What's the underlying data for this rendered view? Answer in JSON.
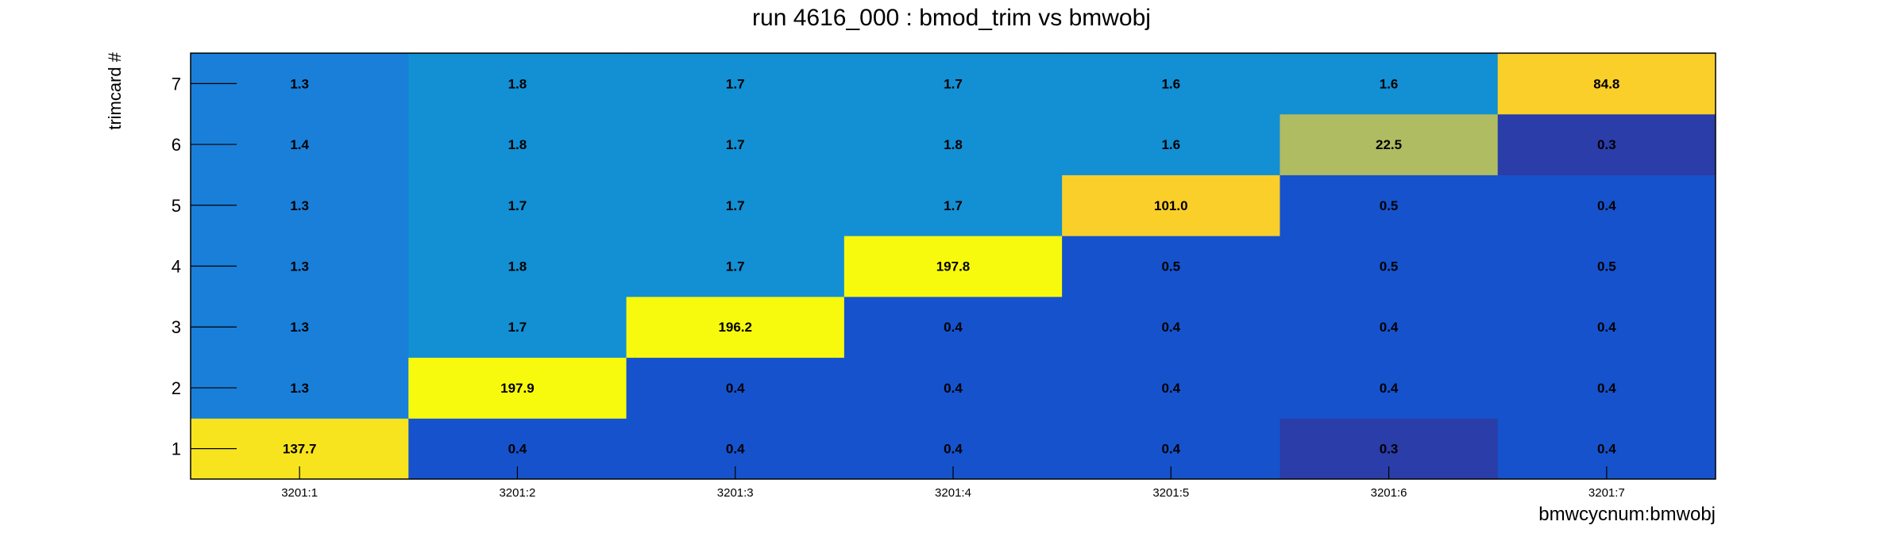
{
  "chart_data": {
    "type": "heatmap",
    "title": "run 4616_000 : bmod_trim vs bmwobj",
    "xlabel": "bmwcycnum:bmwobj",
    "ylabel": "trimcard #",
    "x_categories": [
      "3201:1",
      "3201:2",
      "3201:3",
      "3201:4",
      "3201:5",
      "3201:6",
      "3201:7"
    ],
    "y_categories": [
      "1",
      "2",
      "3",
      "4",
      "5",
      "6",
      "7"
    ],
    "values": [
      [
        137.7,
        0.4,
        0.4,
        0.4,
        0.4,
        0.3,
        0.4
      ],
      [
        1.3,
        197.9,
        0.4,
        0.4,
        0.4,
        0.4,
        0.4
      ],
      [
        1.3,
        1.7,
        196.2,
        0.4,
        0.4,
        0.4,
        0.4
      ],
      [
        1.3,
        1.8,
        1.7,
        197.8,
        0.5,
        0.5,
        0.5
      ],
      [
        1.3,
        1.7,
        1.7,
        1.7,
        101.0,
        0.5,
        0.4
      ],
      [
        1.4,
        1.8,
        1.7,
        1.8,
        1.6,
        22.5,
        0.3
      ],
      [
        1.3,
        1.8,
        1.7,
        1.7,
        1.6,
        1.6,
        84.8
      ]
    ],
    "value_labels": [
      [
        "137.7",
        "0.4",
        "0.4",
        "0.4",
        "0.4",
        "0.3",
        "0.4"
      ],
      [
        "1.3",
        "197.9",
        "0.4",
        "0.4",
        "0.4",
        "0.4",
        "0.4"
      ],
      [
        "1.3",
        "1.7",
        "196.2",
        "0.4",
        "0.4",
        "0.4",
        "0.4"
      ],
      [
        "1.3",
        "1.8",
        "1.7",
        "197.8",
        "0.5",
        "0.5",
        "0.5"
      ],
      [
        "1.3",
        "1.7",
        "1.7",
        "1.7",
        "101.0",
        "0.5",
        "0.4"
      ],
      [
        "1.4",
        "1.8",
        "1.7",
        "1.8",
        "1.6",
        "22.5",
        "0.3"
      ],
      [
        "1.3",
        "1.8",
        "1.7",
        "1.7",
        "1.6",
        "1.6",
        "84.8"
      ]
    ],
    "colors": {
      "lt_0.35": "#2a3da8",
      "0.35_0.45": "#1652cc",
      "0.45_0.55": "#1652cc",
      "1.25_1.35": "#1a7fd8",
      "1.35_1.5": "#1a7fd8",
      "1.5_2.0": "#138fd3",
      "mid": "#b0bc62",
      "high_orange": "#fbcf2a",
      "high_yellow": "#f7e41e",
      "max_yellow": "#f8fa0e"
    }
  }
}
